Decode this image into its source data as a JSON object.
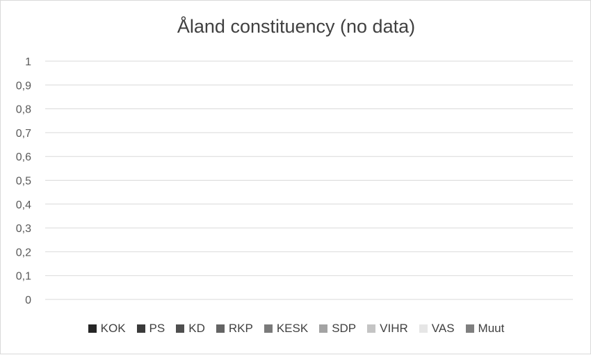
{
  "chart_data": {
    "type": "bar",
    "title": "Åland constituency (no data)",
    "xlabel": "",
    "ylabel": "",
    "ylim": [
      0,
      1
    ],
    "y_ticks": [
      "0",
      "0,1",
      "0,2",
      "0,3",
      "0,4",
      "0,5",
      "0,6",
      "0,7",
      "0,8",
      "0,9",
      "1"
    ],
    "categories": [],
    "grid": true,
    "legend_position": "bottom",
    "series": [
      {
        "name": "KOK",
        "color": "#262626",
        "values": []
      },
      {
        "name": "PS",
        "color": "#3a3a3a",
        "values": []
      },
      {
        "name": "KD",
        "color": "#4f4f4f",
        "values": []
      },
      {
        "name": "RKP",
        "color": "#646464",
        "values": []
      },
      {
        "name": "KESK",
        "color": "#7a7a7a",
        "values": []
      },
      {
        "name": "SDP",
        "color": "#a3a3a3",
        "values": []
      },
      {
        "name": "VIHR",
        "color": "#c4c4c4",
        "values": []
      },
      {
        "name": "VAS",
        "color": "#e6e6e6",
        "values": []
      },
      {
        "name": "Muut",
        "color": "#7f7f7f",
        "values": []
      }
    ]
  }
}
